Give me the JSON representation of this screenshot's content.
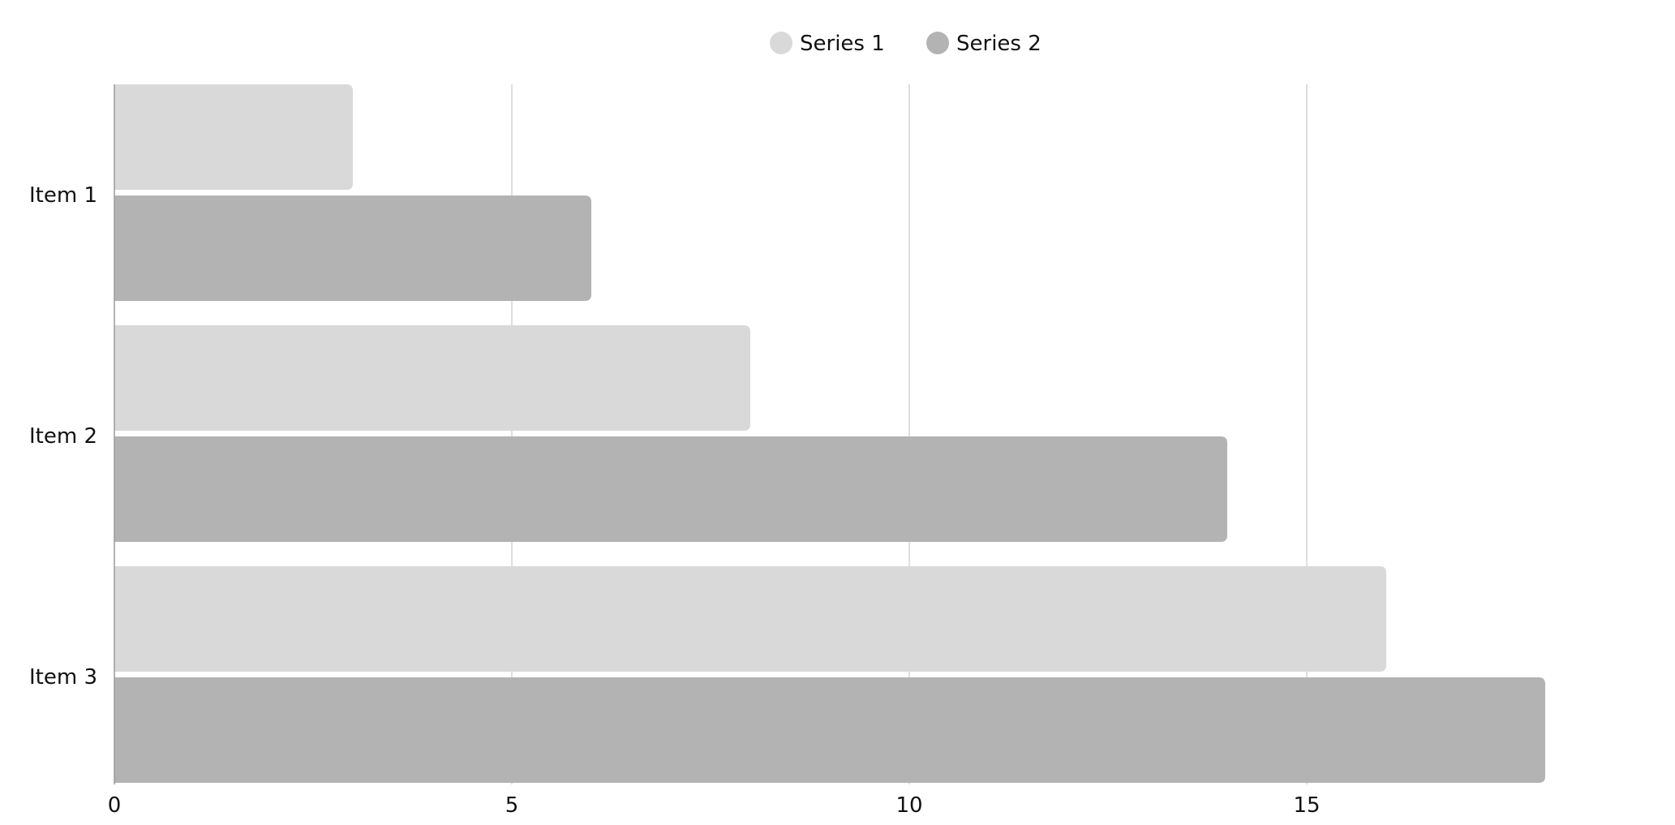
{
  "chart_data": {
    "type": "bar",
    "orientation": "horizontal",
    "title": "",
    "xlabel": "",
    "ylabel": "",
    "categories": [
      "Item 1",
      "Item 2",
      "Item 3"
    ],
    "series": [
      {
        "name": "Series 1",
        "color": "#d9d9d9",
        "values": [
          3,
          8,
          16
        ]
      },
      {
        "name": "Series 2",
        "color": "#b3b3b3",
        "values": [
          6,
          14,
          18
        ]
      }
    ],
    "xlim": [
      0,
      20
    ],
    "xticks": [
      "0",
      "5",
      "10",
      "15"
    ],
    "grid": true,
    "legend": "top-center"
  }
}
